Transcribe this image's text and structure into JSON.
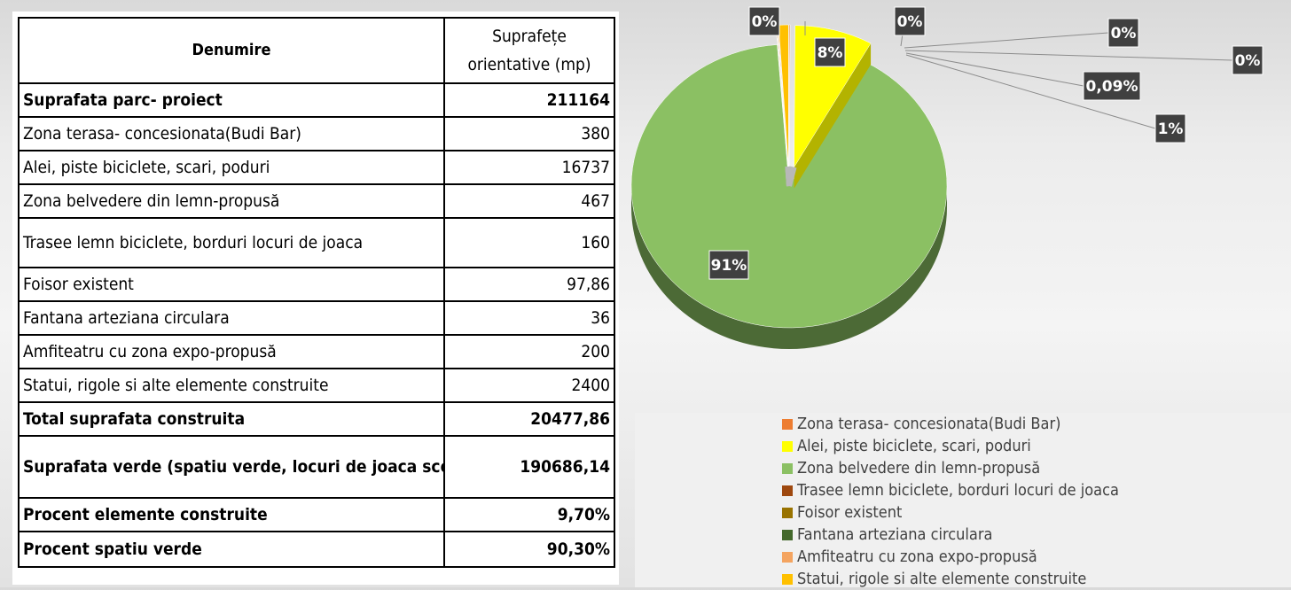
{
  "table": {
    "header_name": "Denumire",
    "header_value": "Suprafețe orientative (mp)",
    "rows": [
      {
        "name": "Suprafata parc- proiect",
        "value": "211164",
        "bold": true
      },
      {
        "name": "Zona terasa- concesionata(Budi Bar)",
        "value": "380"
      },
      {
        "name": "Alei, piste biciclete, scari, poduri",
        "value": "16737"
      },
      {
        "name": "Zona belvedere din lemn-propusă",
        "value": "467"
      },
      {
        "name": "Trasee lemn biciclete, borduri locuri de joaca",
        "value": "160"
      },
      {
        "name": "Foisor existent",
        "value": "97,86"
      },
      {
        "name": "Fantana arteziana circulara",
        "value": "36"
      },
      {
        "name": "Amfiteatru cu zona expo-propusă",
        "value": "200"
      },
      {
        "name": "Statui, rigole si alte elemente construite",
        "value": "2400"
      },
      {
        "name": "Total suprafata construita",
        "value": "20477,86",
        "bold": true
      },
      {
        "name": "Suprafata verde (spatiu verde, locuri de joaca scoarta copac si luciu apa)",
        "value": "190686,14",
        "bold": true
      },
      {
        "name": "Procent elemente construite",
        "value": "9,70%",
        "bold": true
      },
      {
        "name": "Procent spatiu verde",
        "value": "90,30%",
        "bold": true
      }
    ]
  },
  "chart_data": {
    "type": "pie",
    "style": "3d",
    "slices": [
      {
        "name": "Zona terasa- concesionata(Budi Bar)",
        "value": 0.1,
        "label": "0%",
        "color": "#ED7D31"
      },
      {
        "name": "Alei, piste biciclete, scari, poduri",
        "value": 8,
        "label": "8%",
        "color": "#FFFF00"
      },
      {
        "name": "Zona belvedere din lemn-propusă",
        "value": 91,
        "label": "91%",
        "color": "#8BC063"
      },
      {
        "name": "Trasee lemn biciclete, borduri locuri de joaca",
        "value": 0.05,
        "label": "0%",
        "color": "#9E480E"
      },
      {
        "name": "Foisor existent",
        "value": 0.05,
        "label": "0%",
        "color": "#997300"
      },
      {
        "name": "Fantana arteziana circulara",
        "value": 0.02,
        "label": "0%",
        "color": "#43682B"
      },
      {
        "name": "Amfiteatru cu zona expo-propusă",
        "value": 0.09,
        "label": "0,09%",
        "color": "#F4A460"
      },
      {
        "name": "Statui, rigole si alte elemente construite",
        "value": 1,
        "label": "1%",
        "color": "#FFC000"
      }
    ],
    "legend_position": "bottom"
  }
}
